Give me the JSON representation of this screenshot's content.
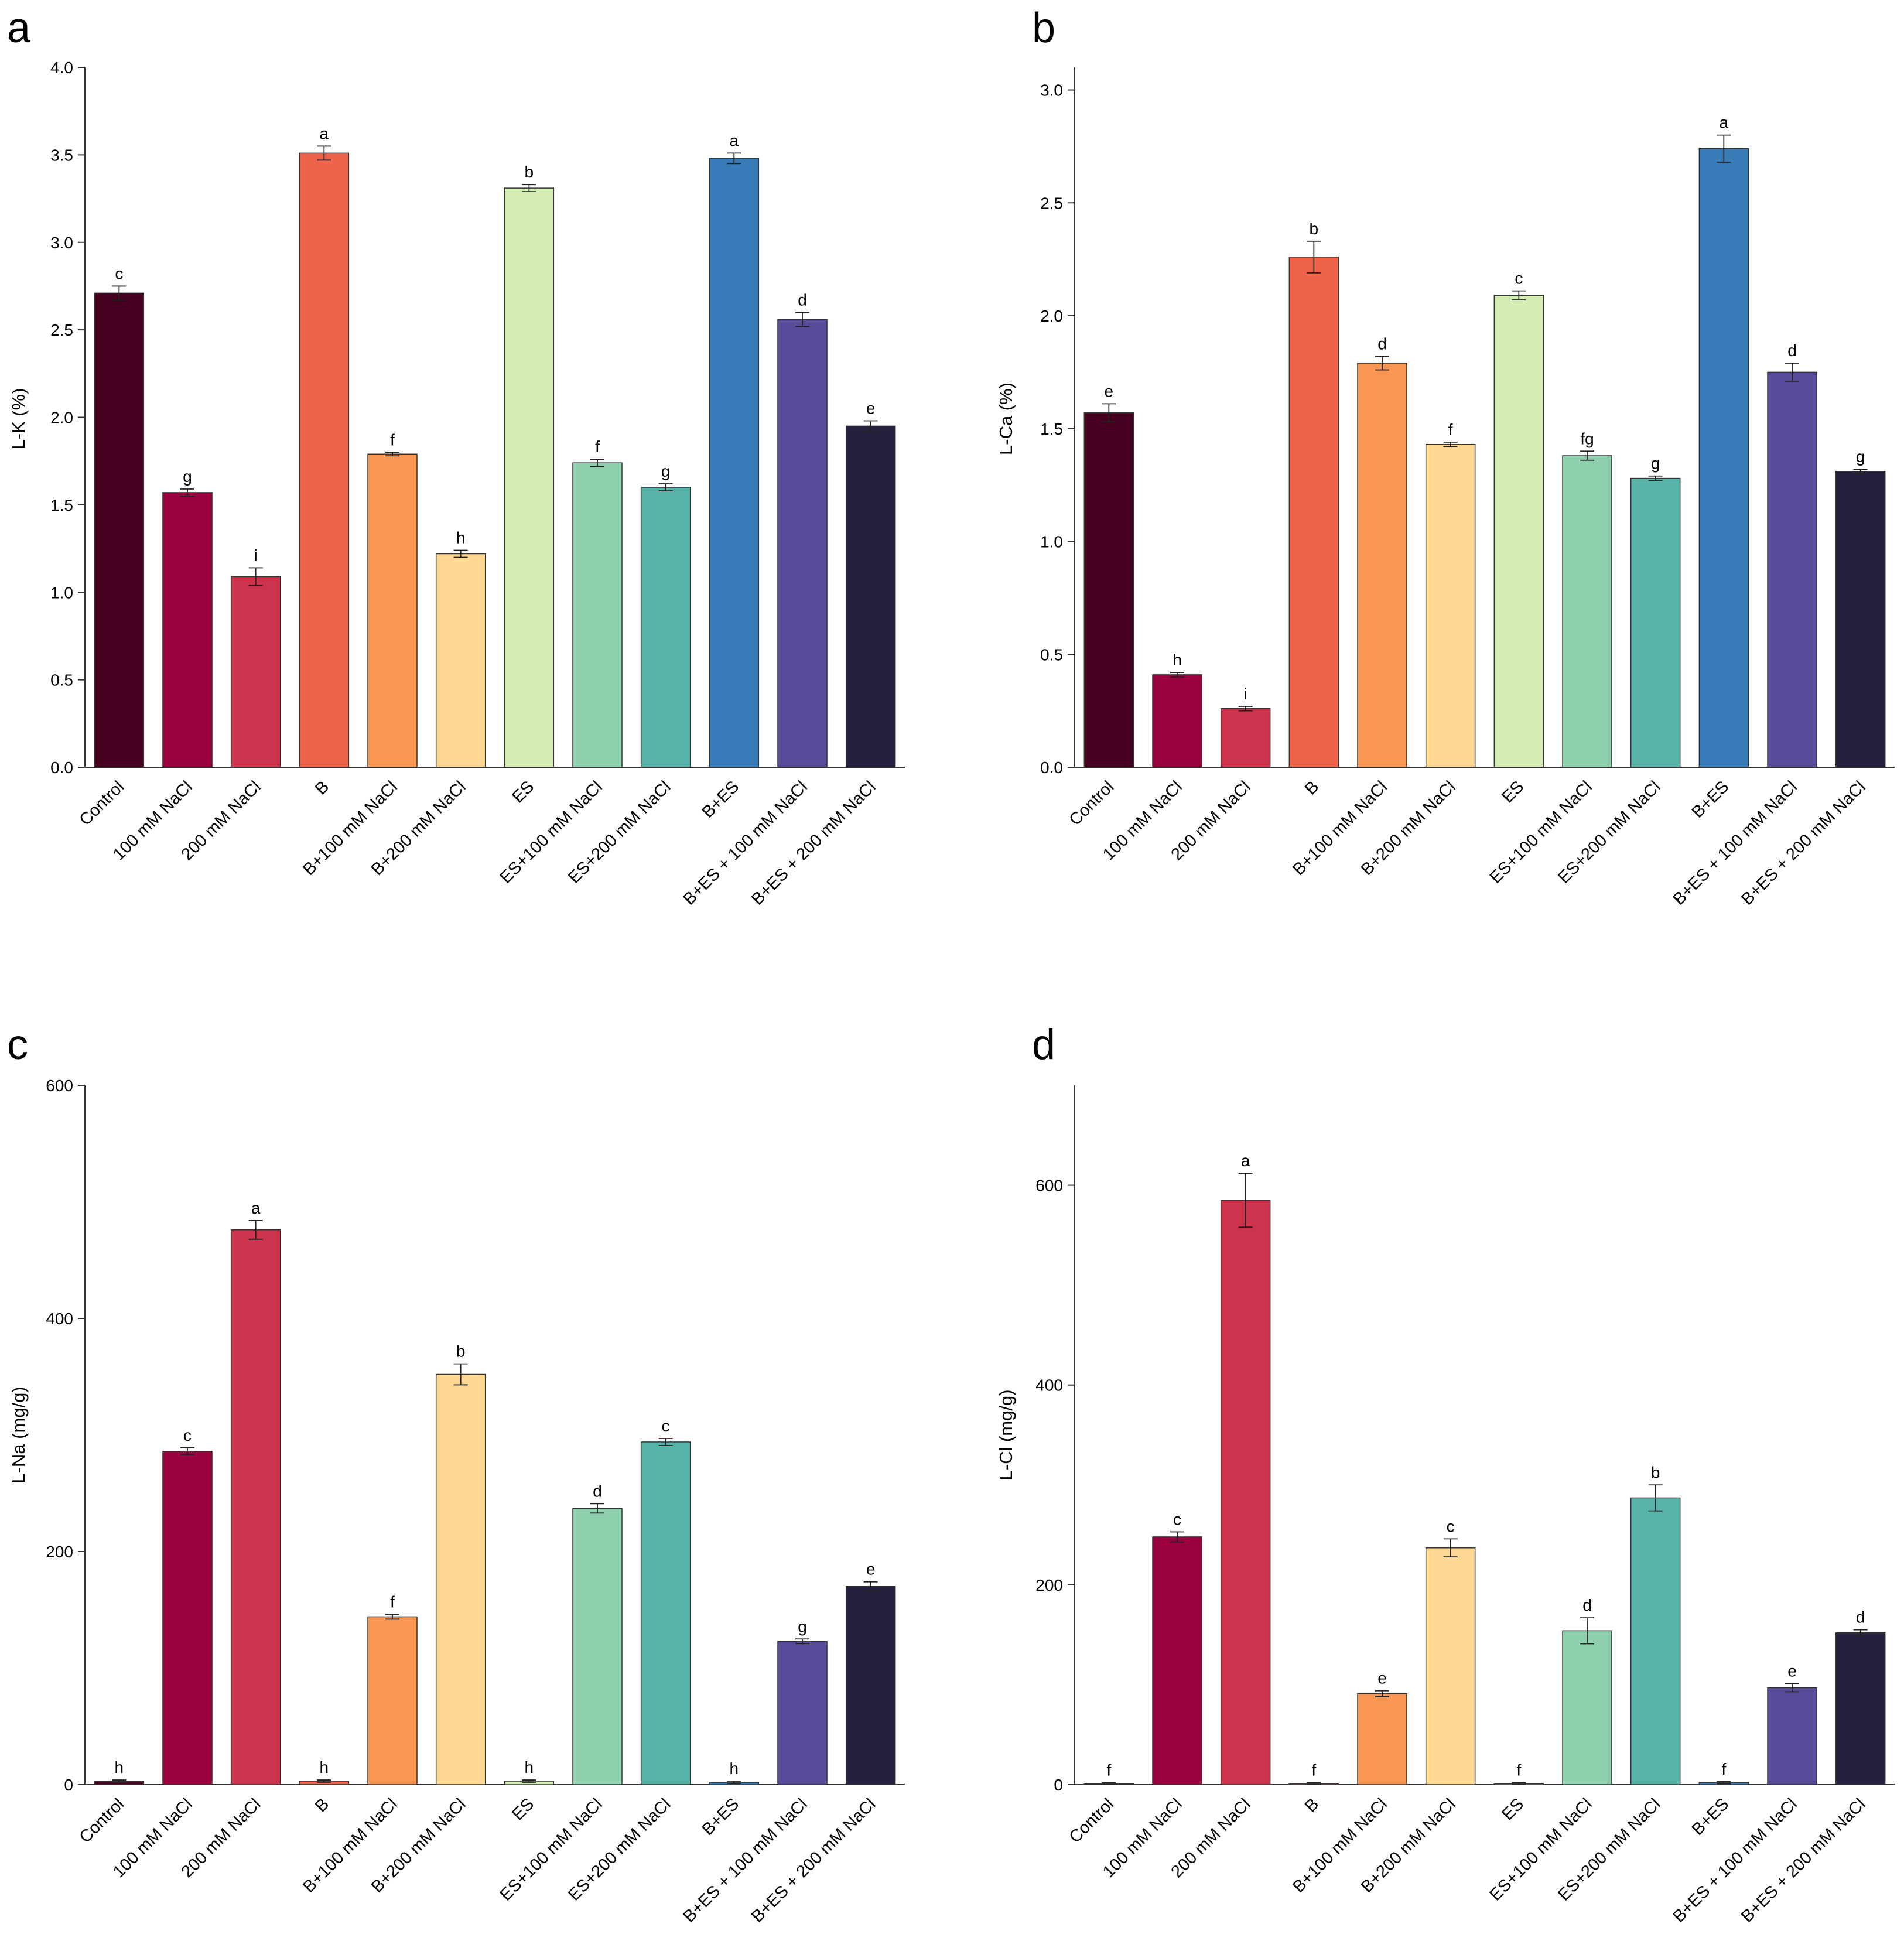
{
  "colors": [
    "#45001f",
    "#99003d",
    "#cc334d",
    "#ee6349",
    "#f99653",
    "#fed893",
    "#d3edb5",
    "#8ecfae",
    "#58b3a9",
    "#377cb8",
    "#574b9a",
    "#26203f"
  ],
  "categories": [
    "Control",
    "100 mM NaCl",
    "200 mM NaCl",
    "B",
    "B+100 mM NaCl",
    "B+200 mM NaCl",
    "ES",
    "ES+100 mM NaCl",
    "ES+200 mM NaCl",
    "B+ES",
    "B+ES + 100 mM NaCl",
    "B+ES + 200 mM NaCl"
  ],
  "chart_data": [
    {
      "panel": "a",
      "type": "bar",
      "ylabel": "L-K (%)",
      "ylim": [
        0,
        4.0
      ],
      "yticks": [
        "0.0",
        "0.5",
        "1.0",
        "1.5",
        "2.0",
        "2.5",
        "3.0",
        "3.5",
        "4.0"
      ],
      "values": [
        2.71,
        1.57,
        1.09,
        3.51,
        1.79,
        1.22,
        3.31,
        1.74,
        1.6,
        3.48,
        2.56,
        1.95
      ],
      "errors": [
        0.04,
        0.02,
        0.05,
        0.04,
        0.01,
        0.02,
        0.02,
        0.02,
        0.02,
        0.03,
        0.04,
        0.03
      ],
      "letters": [
        "c",
        "g",
        "i",
        "a",
        "f",
        "h",
        "b",
        "f",
        "g",
        "a",
        "d",
        "e"
      ]
    },
    {
      "panel": "b",
      "type": "bar",
      "ylabel": "L-Ca (%)",
      "ylim": [
        0,
        3.1
      ],
      "yticks": [
        "0.0",
        "0.5",
        "1.0",
        "1.5",
        "2.0",
        "2.5",
        "3.0"
      ],
      "values": [
        1.57,
        0.41,
        0.26,
        2.26,
        1.79,
        1.43,
        2.09,
        1.38,
        1.28,
        2.74,
        1.75,
        1.31
      ],
      "errors": [
        0.04,
        0.01,
        0.01,
        0.07,
        0.03,
        0.01,
        0.02,
        0.02,
        0.01,
        0.06,
        0.04,
        0.01
      ],
      "letters": [
        "e",
        "h",
        "i",
        "b",
        "d",
        "f",
        "c",
        "fg",
        "g",
        "a",
        "d",
        "g"
      ]
    },
    {
      "panel": "c",
      "type": "bar",
      "ylabel": "L-Na (mg/g)",
      "ylim": [
        0,
        600
      ],
      "yticks": [
        "0",
        "200",
        "400",
        "600"
      ],
      "values": [
        3,
        286,
        476,
        3,
        144,
        352,
        3,
        237,
        294,
        2,
        123,
        170
      ],
      "errors": [
        1,
        3,
        8,
        1,
        2,
        9,
        1,
        4,
        3,
        1,
        2,
        4
      ],
      "letters": [
        "h",
        "c",
        "a",
        "h",
        "f",
        "b",
        "h",
        "d",
        "c",
        "h",
        "g",
        "e"
      ]
    },
    {
      "panel": "d",
      "type": "bar",
      "ylabel": "L-Cl (mg/g)",
      "ylim": [
        0,
        700
      ],
      "yticks": [
        "0",
        "200",
        "400",
        "600"
      ],
      "values": [
        1,
        248,
        585,
        1,
        91,
        237,
        1,
        154,
        287,
        2,
        97,
        152
      ],
      "errors": [
        1,
        5,
        27,
        1,
        3,
        9,
        1,
        13,
        13,
        1,
        4,
        3
      ],
      "letters": [
        "f",
        "c",
        "a",
        "f",
        "e",
        "c",
        "f",
        "d",
        "b",
        "f",
        "e",
        "d"
      ]
    }
  ]
}
